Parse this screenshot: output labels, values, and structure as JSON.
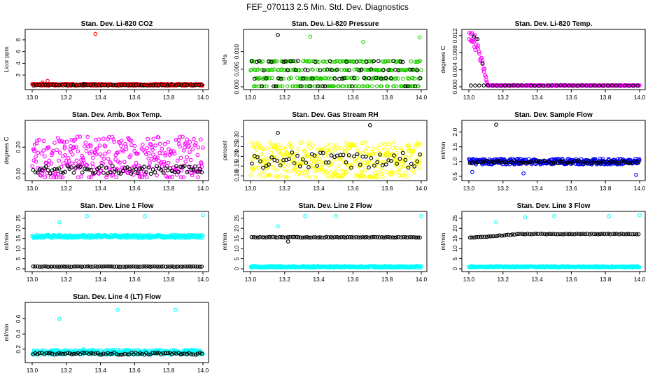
{
  "figure_title": "FEF_070113  2.5 Min. Std. Dev. Diagnostics",
  "colors": {
    "red": "#ff0000",
    "green": "#22cc00",
    "magenta": "#ff00ff",
    "yellow": "#ffff00",
    "blue": "#0000ff",
    "cyan": "#00ffff",
    "black": "#000000"
  },
  "chart_data": [
    {
      "type": "scatter",
      "title": "Stan. Dev. Li-820 CO2",
      "xlabel": "",
      "ylabel": "Licor ppm",
      "xlim": [
        13.0,
        14.0
      ],
      "ylim": [
        0,
        9.3
      ],
      "xticks": [
        "13.0",
        "13.2",
        "13.4",
        "13.6",
        "13.8",
        "14.0"
      ],
      "yticks": [
        "2",
        "4",
        "6",
        "8"
      ],
      "ytick_values": [
        2,
        4,
        6,
        8
      ],
      "series": [
        {
          "name": "primary",
          "color": "red",
          "n": 300,
          "base": 0.35,
          "spread": 0.2,
          "outliers": [
            [
              13.37,
              9.0
            ],
            [
              13.09,
              1.0
            ],
            [
              13.06,
              0.7
            ]
          ]
        },
        {
          "name": "black",
          "color": "black",
          "n": 60,
          "base": 0.3,
          "spread": 0.15,
          "outliers": [
            [
              13.3,
              0.5
            ]
          ]
        }
      ]
    },
    {
      "type": "scatter",
      "title": "Stan. Dev. Li-820 Pressure",
      "xlabel": "",
      "ylabel": "kPa",
      "xlim": [
        13.0,
        14.0
      ],
      "ylim": [
        0,
        0.0155
      ],
      "xticks": [
        "13.0",
        "13.2",
        "13.4",
        "13.6",
        "13.8",
        "14.0"
      ],
      "yticks": [
        "0.000",
        "0.005",
        "0.010"
      ],
      "ytick_values": [
        0,
        0.005,
        0.01
      ],
      "series": [
        {
          "name": "primary",
          "color": "green",
          "levels": [
            0,
            0.0024,
            0.0048,
            0.0072
          ],
          "n": 340,
          "outliers": [
            [
              13.35,
              0.0142
            ],
            [
              13.66,
              0.0127
            ],
            [
              13.99,
              0.014
            ]
          ]
        },
        {
          "name": "black",
          "color": "black",
          "levels": [
            0,
            0.0024,
            0.0048,
            0.0072
          ],
          "n": 70,
          "outliers": [
            [
              13.16,
              0.0147
            ]
          ]
        }
      ]
    },
    {
      "type": "scatter",
      "title": "Stan. Dev. Li-820 Temp.",
      "xlabel": "",
      "ylabel": "degrees C",
      "xlim": [
        13.0,
        14.0
      ],
      "ylim": [
        0,
        0.0128
      ],
      "xticks": [
        "13.0",
        "13.2",
        "13.4",
        "13.6",
        "13.8",
        "14.0"
      ],
      "yticks": [
        "0.000",
        "0.004",
        "0.008",
        "0.012"
      ],
      "ytick_values": [
        0,
        0.004,
        0.008,
        0.012
      ],
      "series": [
        {
          "name": "primary",
          "color": "magenta",
          "n": 300,
          "base": 0.0003,
          "spread": 0.0001,
          "decay_from": 0.012,
          "decay_until": 13.11
        },
        {
          "name": "black",
          "color": "black",
          "n": 40,
          "base": 0.0003,
          "spread": 0.0001,
          "outliers": [
            [
              13.03,
              0.0118
            ],
            [
              13.05,
              0.0112
            ],
            [
              13.08,
              0.0055
            ]
          ]
        }
      ]
    },
    {
      "type": "scatter",
      "title": "Stan. Dev. Amb. Box Temp.",
      "xlabel": "",
      "ylabel": "degrees C",
      "xlim": [
        13.0,
        14.0
      ],
      "ylim": [
        0.085,
        0.29
      ],
      "xticks": [
        "13.0",
        "13.2",
        "13.4",
        "13.6",
        "13.8",
        "14.0"
      ],
      "yticks": [
        "0.10",
        "0.20"
      ],
      "ytick_values": [
        0.1,
        0.2
      ],
      "series": [
        {
          "name": "primary",
          "color": "magenta",
          "n": 320,
          "base": 0.16,
          "spread": 0.1
        },
        {
          "name": "black",
          "color": "black",
          "n": 80,
          "base": 0.115,
          "spread": 0.03
        }
      ]
    },
    {
      "type": "scatter",
      "title": "Stan. Dev. Gas Stream RH",
      "xlabel": "",
      "ylabel": "percent",
      "xlim": [
        13.0,
        14.0
      ],
      "ylim": [
        0.09,
        0.37
      ],
      "xticks": [
        "13.0",
        "13.2",
        "13.4",
        "13.6",
        "13.8",
        "14.0"
      ],
      "yticks": [
        "0.10",
        "0.15",
        "0.20",
        "0.25",
        "0.30"
      ],
      "ytick_values": [
        0.1,
        0.15,
        0.2,
        0.25,
        0.3
      ],
      "series": [
        {
          "name": "primary",
          "color": "yellow",
          "n": 340,
          "base": 0.18,
          "spread": 0.12
        },
        {
          "name": "black",
          "color": "black",
          "n": 60,
          "base": 0.18,
          "spread": 0.08,
          "outliers": [
            [
              13.7,
              0.36
            ],
            [
              13.16,
              0.32
            ]
          ]
        }
      ]
    },
    {
      "type": "scatter",
      "title": "Stan. Dev. Sample Flow",
      "xlabel": "",
      "ylabel": "ml/min",
      "xlim": [
        13.0,
        14.0
      ],
      "ylim": [
        0.45,
        2.3
      ],
      "xticks": [
        "13.0",
        "13.2",
        "13.4",
        "13.6",
        "13.8",
        "14.0"
      ],
      "yticks": [
        "0.5",
        "1.0",
        "1.5",
        "2.0"
      ],
      "ytick_values": [
        0.5,
        1.0,
        1.5,
        2.0
      ],
      "series": [
        {
          "name": "primary",
          "color": "blue",
          "n": 340,
          "base": 1.0,
          "spread": 0.12,
          "outliers": [
            [
              13.98,
              0.55
            ],
            [
              13.32,
              0.6
            ],
            [
              13.02,
              0.65
            ]
          ]
        },
        {
          "name": "black",
          "color": "black",
          "n": 80,
          "base": 0.98,
          "spread": 0.08,
          "outliers": [
            [
              13.16,
              2.25
            ]
          ]
        }
      ]
    },
    {
      "type": "scatter",
      "title": "Stan. Dev. Line 1 Flow",
      "xlabel": "",
      "ylabel": "ml/min",
      "xlim": [
        13.0,
        14.0
      ],
      "ylim": [
        0,
        27
      ],
      "xticks": [
        "13.0",
        "13.2",
        "13.4",
        "13.6",
        "13.8",
        "14.0"
      ],
      "yticks": [
        "0",
        "5",
        "10",
        "15",
        "20",
        "25"
      ],
      "ytick_values": [
        0,
        5,
        10,
        15,
        20,
        25
      ],
      "series": [
        {
          "name": "primary",
          "color": "cyan",
          "n": 340,
          "base": 16.0,
          "spread": 0.9,
          "outliers": [
            [
              13.16,
              23.0
            ],
            [
              13.32,
              26.0
            ],
            [
              13.66,
              26.0
            ],
            [
              14.0,
              26.5
            ]
          ]
        },
        {
          "name": "black",
          "color": "black",
          "n": 80,
          "base": 1.1,
          "spread": 0.2
        }
      ]
    },
    {
      "type": "scatter",
      "title": "Stan. Dev. Line 2 Flow",
      "xlabel": "",
      "ylabel": "ml/min",
      "xlim": [
        13.0,
        14.0
      ],
      "ylim": [
        0,
        27
      ],
      "xticks": [
        "13.0",
        "13.2",
        "13.4",
        "13.6",
        "13.8",
        "14.0"
      ],
      "yticks": [
        "0",
        "5",
        "10",
        "15",
        "20",
        "25"
      ],
      "ytick_values": [
        0,
        5,
        10,
        15,
        20,
        25
      ],
      "series": [
        {
          "name": "primary",
          "color": "cyan",
          "n": 340,
          "base": 1.0,
          "spread": 0.5,
          "outliers": [
            [
              13.16,
              21.0
            ],
            [
              13.32,
              26.0
            ],
            [
              13.5,
              26.0
            ],
            [
              14.0,
              26.0
            ]
          ]
        },
        {
          "name": "black",
          "color": "black",
          "n": 80,
          "base": 15.6,
          "spread": 0.3,
          "outliers": [
            [
              13.22,
              13.5
            ]
          ]
        }
      ]
    },
    {
      "type": "scatter",
      "title": "Stan. Dev. Line 3 Flow",
      "xlabel": "",
      "ylabel": "ml/min",
      "xlim": [
        13.0,
        14.0
      ],
      "ylim": [
        0,
        27
      ],
      "xticks": [
        "13.0",
        "13.2",
        "13.4",
        "13.6",
        "13.8",
        "14.0"
      ],
      "yticks": [
        "0",
        "5",
        "10",
        "15",
        "20",
        "25"
      ],
      "ytick_values": [
        0,
        5,
        10,
        15,
        20,
        25
      ],
      "series": [
        {
          "name": "primary",
          "color": "cyan",
          "n": 340,
          "base": 1.0,
          "spread": 0.4,
          "outliers": [
            [
              13.16,
              23.0
            ],
            [
              13.33,
              25.5
            ],
            [
              13.5,
              26.0
            ],
            [
              13.82,
              26.0
            ],
            [
              14.0,
              26.5
            ]
          ]
        },
        {
          "name": "black",
          "color": "black",
          "n": 80,
          "base": 17.2,
          "spread": 0.3,
          "ramp_from": 15.3
        }
      ]
    },
    {
      "type": "scatter",
      "title": "Stan. Dev. Line 4 (LT) Flow",
      "xlabel": "",
      "ylabel": "ml/min",
      "xlim": [
        13.0,
        14.0
      ],
      "ylim": [
        0.06,
        0.78
      ],
      "xticks": [
        "13.0",
        "13.2",
        "13.4",
        "13.6",
        "13.8",
        "14.0"
      ],
      "yticks": [
        "0.2",
        "0.4",
        "0.6"
      ],
      "ytick_values": [
        0.2,
        0.4,
        0.6
      ],
      "series": [
        {
          "name": "primary",
          "color": "cyan",
          "n": 340,
          "base": 0.16,
          "spread": 0.04,
          "outliers": [
            [
              13.16,
              0.6
            ],
            [
              13.5,
              0.72
            ],
            [
              13.84,
              0.72
            ],
            [
              13.3,
              0.2
            ]
          ]
        },
        {
          "name": "black",
          "color": "black",
          "n": 80,
          "base": 0.14,
          "spread": 0.03
        }
      ]
    }
  ]
}
